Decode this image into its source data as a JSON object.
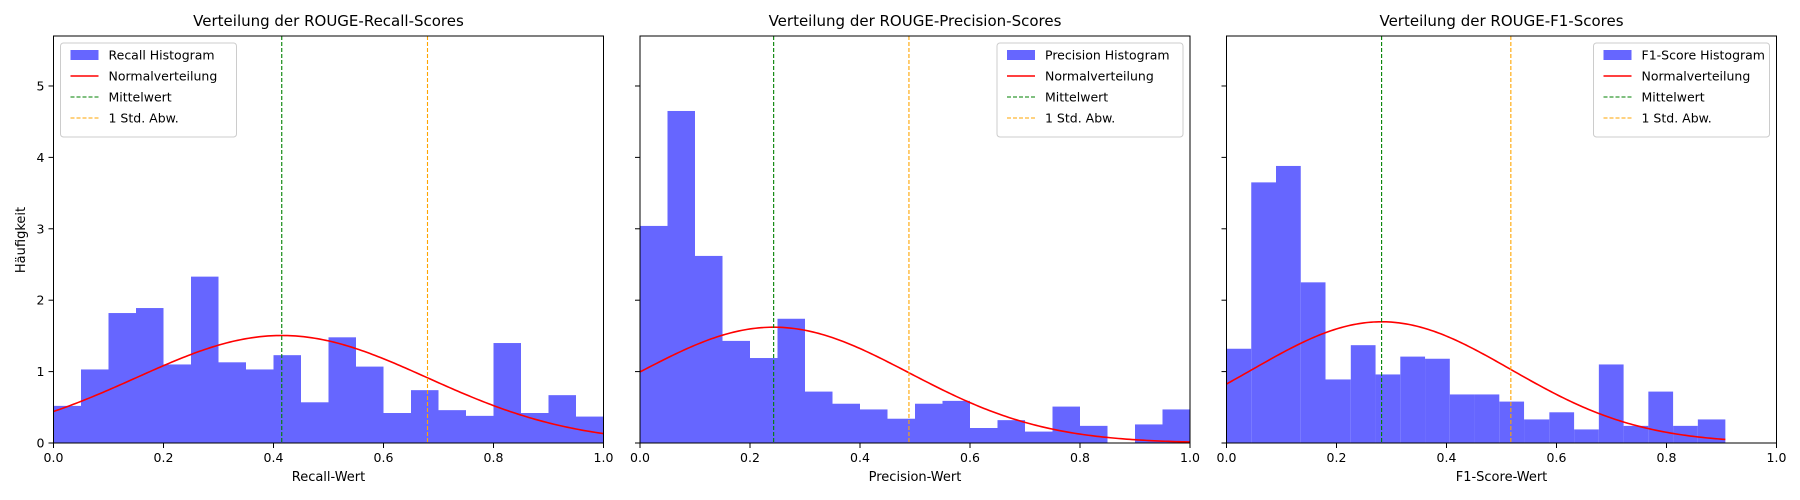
{
  "figure": {
    "shared_ylabel": "Häufigkeit",
    "colors": {
      "histogram": "#6666ff",
      "normal_curve": "#ff0000",
      "mean_line": "#008000",
      "std_line": "#ffa500"
    }
  },
  "chart_data": [
    {
      "type": "bar",
      "title": "Verteilung der ROUGE-Recall-Scores",
      "xlabel": "Recall-Wert",
      "ylabel": "Häufigkeit",
      "xlim": [
        0,
        1
      ],
      "ylim": [
        0,
        5.7
      ],
      "xticks": [
        "0.0",
        "0.2",
        "0.4",
        "0.6",
        "0.8",
        "1.0"
      ],
      "yticks": [
        "0",
        "1",
        "2",
        "3",
        "4",
        "5"
      ],
      "bin_edges": [
        0.0,
        0.05,
        0.1,
        0.15,
        0.2,
        0.25,
        0.3,
        0.35,
        0.4,
        0.45,
        0.5,
        0.55,
        0.6,
        0.65,
        0.7,
        0.75,
        0.8,
        0.85,
        0.9,
        0.95,
        1.0
      ],
      "values": [
        0.52,
        1.03,
        1.82,
        1.89,
        1.1,
        2.33,
        1.13,
        1.03,
        1.23,
        0.57,
        1.48,
        1.07,
        0.42,
        0.74,
        0.46,
        0.38,
        1.4,
        0.42,
        0.67,
        0.37
      ],
      "mean": 0.415,
      "std": 0.265,
      "curve_range": [
        0.0,
        1.0
      ],
      "legend_position": "top-left",
      "legend": [
        "Recall Histogram",
        "Normalverteilung",
        "Mittelwert",
        "1 Std. Abw."
      ]
    },
    {
      "type": "bar",
      "title": "Verteilung der ROUGE-Precision-Scores",
      "xlabel": "Precision-Wert",
      "ylabel": "",
      "xlim": [
        0,
        1
      ],
      "ylim": [
        0,
        5.7
      ],
      "xticks": [
        "0.0",
        "0.2",
        "0.4",
        "0.6",
        "0.8",
        "1.0"
      ],
      "yticks": [],
      "bin_edges": [
        0.0,
        0.05,
        0.1,
        0.15,
        0.2,
        0.25,
        0.3,
        0.35,
        0.4,
        0.45,
        0.5,
        0.55,
        0.6,
        0.65,
        0.7,
        0.75,
        0.8,
        0.85,
        0.9,
        0.95,
        1.0
      ],
      "values": [
        3.04,
        4.65,
        2.62,
        1.43,
        1.19,
        1.74,
        0.72,
        0.55,
        0.47,
        0.34,
        0.55,
        0.59,
        0.21,
        0.32,
        0.16,
        0.51,
        0.24,
        0.0,
        0.26,
        0.47
      ],
      "mean": 0.243,
      "std": 0.246,
      "curve_range": [
        0.0,
        1.0
      ],
      "legend_position": "top-right",
      "legend": [
        "Precision Histogram",
        "Normalverteilung",
        "Mittelwert",
        "1 Std. Abw."
      ]
    },
    {
      "type": "bar",
      "title": "Verteilung der ROUGE-F1-Scores",
      "xlabel": "F1-Score-Wert",
      "ylabel": "",
      "xlim": [
        0,
        1
      ],
      "ylim": [
        0,
        5.7
      ],
      "xticks": [
        "0.0",
        "0.2",
        "0.4",
        "0.6",
        "0.8",
        "1.0"
      ],
      "yticks": [],
      "bin_edges": [
        0.0,
        0.045,
        0.09,
        0.135,
        0.18,
        0.226,
        0.271,
        0.316,
        0.361,
        0.406,
        0.451,
        0.496,
        0.541,
        0.587,
        0.632,
        0.677,
        0.722,
        0.767,
        0.812,
        0.857,
        0.907
      ],
      "values": [
        1.32,
        3.65,
        3.88,
        2.25,
        0.89,
        1.37,
        0.96,
        1.21,
        1.18,
        0.68,
        0.68,
        0.58,
        0.33,
        0.43,
        0.19,
        1.1,
        0.24,
        0.72,
        0.24,
        0.33
      ],
      "mean": 0.282,
      "std": 0.235,
      "curve_range": [
        0.0,
        0.907
      ],
      "legend_position": "top-right",
      "legend": [
        "F1-Score Histogram",
        "Normalverteilung",
        "Mittelwert",
        "1 Std. Abw."
      ]
    }
  ]
}
